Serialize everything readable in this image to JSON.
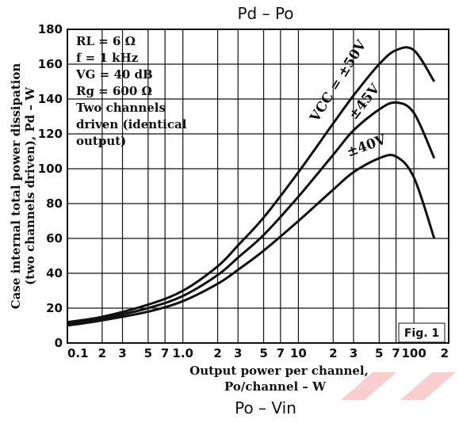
{
  "title": "Pd  –  Po",
  "bottom_title": "Po  –  Vin",
  "fig_label": "Fig. 1",
  "conditions": [
    "RL = 6 Ω",
    "f = 1 kHz",
    "VG = 40 dB",
    "Rg = 600 Ω",
    "Two channels",
    "driven (identical",
    "output)"
  ],
  "colors": {
    "ink": "#111111",
    "watermark": "#e8303a",
    "background": "#ffffff"
  },
  "chart_data": {
    "type": "line",
    "title": "Pd  –  Po",
    "xlabel_line1": "Output power per channel,",
    "xlabel_line2": "Po/channel – W",
    "ylabel_line1": "Case internal total power dissipation",
    "ylabel_line2": "(two channels driven), Pd – W",
    "x_scale": "log",
    "xlim": [
      0.1,
      200
    ],
    "ylim": [
      0,
      180
    ],
    "grid": true,
    "x_ticks": [
      {
        "value": 0.1,
        "label": "0.1"
      },
      {
        "value": 0.2,
        "label": "2"
      },
      {
        "value": 0.3,
        "label": "3"
      },
      {
        "value": 0.5,
        "label": "5"
      },
      {
        "value": 0.7,
        "label": "7"
      },
      {
        "value": 1,
        "label": "1.0"
      },
      {
        "value": 2,
        "label": "2"
      },
      {
        "value": 3,
        "label": "3"
      },
      {
        "value": 5,
        "label": "5"
      },
      {
        "value": 7,
        "label": "7"
      },
      {
        "value": 10,
        "label": "10"
      },
      {
        "value": 20,
        "label": "2"
      },
      {
        "value": 30,
        "label": "3"
      },
      {
        "value": 50,
        "label": "5"
      },
      {
        "value": 70,
        "label": "7"
      },
      {
        "value": 100,
        "label": "100"
      },
      {
        "value": 200,
        "label": "2"
      }
    ],
    "y_ticks": [
      0,
      20,
      40,
      60,
      80,
      100,
      120,
      140,
      160,
      180
    ],
    "series": [
      {
        "name": "VCC = ±50V",
        "x": [
          0.1,
          0.2,
          0.5,
          1,
          2,
          3,
          5,
          10,
          20,
          30,
          50,
          70,
          100,
          150
        ],
        "y": [
          12,
          15,
          22,
          30,
          44,
          56,
          72,
          98,
          126,
          142,
          160,
          168,
          168,
          150
        ]
      },
      {
        "name": "±45V",
        "x": [
          0.1,
          0.2,
          0.5,
          1,
          2,
          3,
          5,
          10,
          20,
          30,
          50,
          70,
          100,
          150
        ],
        "y": [
          11,
          14,
          20,
          27,
          39,
          49,
          62,
          84,
          108,
          122,
          134,
          138,
          132,
          106
        ]
      },
      {
        "name": "±40V",
        "x": [
          0.1,
          0.2,
          0.5,
          1,
          2,
          3,
          5,
          10,
          20,
          30,
          50,
          70,
          100,
          150
        ],
        "y": [
          10,
          13,
          18,
          24,
          34,
          42,
          53,
          70,
          88,
          98,
          106,
          107,
          95,
          60
        ]
      }
    ]
  }
}
